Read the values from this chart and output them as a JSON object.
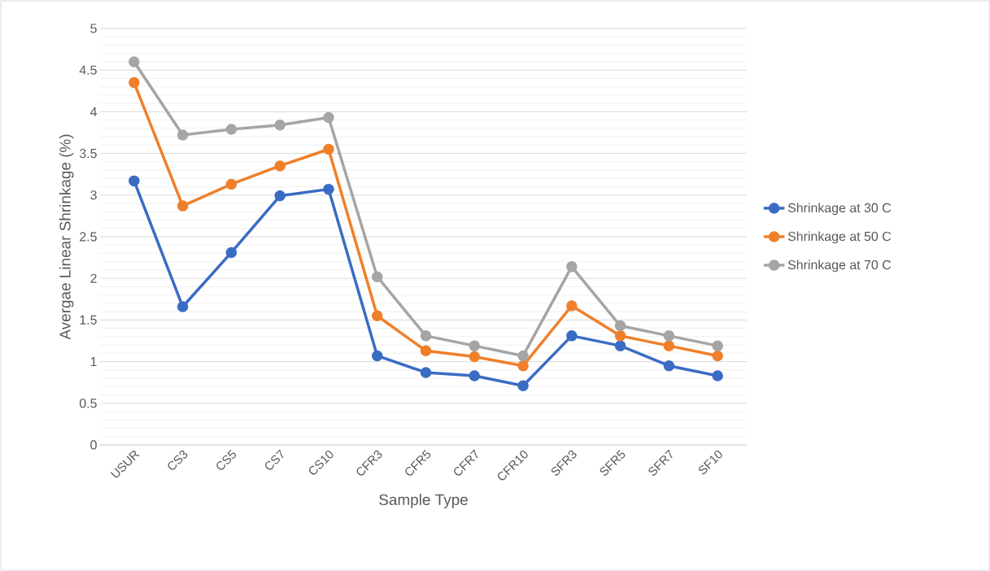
{
  "chart_data": {
    "type": "line",
    "xlabel": "Sample Type",
    "ylabel": "Avergae Linear Shrinkage (%)",
    "categories": [
      "USUR",
      "CS3",
      "CS5",
      "CS7",
      "CS10",
      "CFR3",
      "CFR5",
      "CFR7",
      "CFR10",
      "SFR3",
      "SFR5",
      "SFR7",
      "SF10"
    ],
    "series": [
      {
        "name": "Shrinkage at 30 C",
        "color": "#3a6cc4",
        "values": [
          3.17,
          1.66,
          2.31,
          2.99,
          3.07,
          1.07,
          0.87,
          0.83,
          0.71,
          1.31,
          1.19,
          0.95,
          0.83
        ]
      },
      {
        "name": "Shrinkage at 50 C",
        "color": "#f07f2a",
        "values": [
          4.35,
          2.87,
          3.13,
          3.35,
          3.55,
          1.55,
          1.13,
          1.06,
          0.95,
          1.67,
          1.31,
          1.19,
          1.07
        ]
      },
      {
        "name": "Shrinkage at 70 C",
        "color": "#a5a5a5",
        "values": [
          4.6,
          3.72,
          3.79,
          3.84,
          3.93,
          2.02,
          1.31,
          1.19,
          1.07,
          2.14,
          1.43,
          1.31,
          1.19
        ]
      }
    ],
    "ylim": [
      0,
      5
    ],
    "yticks": [
      0,
      0.5,
      1,
      1.5,
      2,
      2.5,
      3,
      3.5,
      4,
      4.5,
      5
    ],
    "grid": "y",
    "legend": "right",
    "marker": "circle",
    "line_style": "solid"
  }
}
